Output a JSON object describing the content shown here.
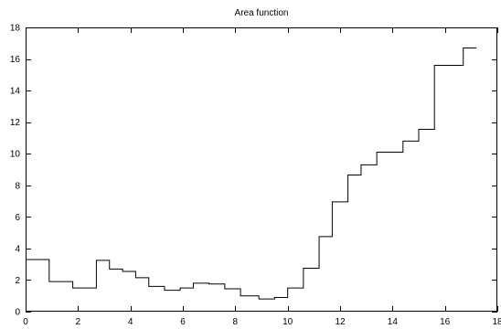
{
  "chart_data": {
    "type": "line",
    "subtype": "step",
    "title": "Area function",
    "xlabel": "",
    "ylabel": "",
    "xlim": [
      0,
      18
    ],
    "ylim": [
      0,
      18
    ],
    "x_ticks": [
      0,
      2,
      4,
      6,
      8,
      10,
      12,
      14,
      16,
      18
    ],
    "y_ticks": [
      0,
      2,
      4,
      6,
      8,
      10,
      12,
      14,
      16,
      18
    ],
    "x_tick_labels": [
      "0",
      "2",
      "4",
      "6",
      "8",
      "10",
      "12",
      "14",
      "16",
      "18"
    ],
    "y_tick_labels": [
      "0",
      "2",
      "4",
      "6",
      "8",
      "10",
      "12",
      "14",
      "16",
      "18"
    ],
    "grid": false,
    "legend": "none",
    "line_color": "#000000",
    "series": [
      {
        "x": [
          0.0,
          0.9,
          1.8,
          2.7,
          3.2,
          3.7,
          4.2,
          4.7,
          5.3,
          5.9,
          6.4,
          7.0,
          7.6,
          8.2,
          8.9,
          9.5,
          10.0,
          10.6,
          11.2,
          11.7,
          12.3,
          12.8,
          13.4,
          13.9,
          14.4,
          15.0,
          15.6,
          16.1,
          16.7,
          17.2
        ],
        "y": [
          3.3,
          1.9,
          1.5,
          3.25,
          2.7,
          2.55,
          2.15,
          1.6,
          1.35,
          1.5,
          1.8,
          1.75,
          1.45,
          1.0,
          0.8,
          0.9,
          1.5,
          2.75,
          4.75,
          6.95,
          8.65,
          9.3,
          10.1,
          10.1,
          10.8,
          11.55,
          15.6,
          15.6,
          16.7,
          16.7
        ]
      }
    ]
  }
}
